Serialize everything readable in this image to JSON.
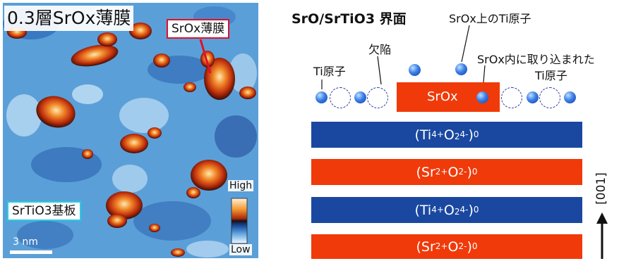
{
  "left_panel": {
    "title": "0.3層SrOx薄膜",
    "film_label": "SrOx薄膜",
    "substrate_label": "SrTiO3基板",
    "colorbar_high": "High",
    "colorbar_low": "Low",
    "scale_bar": "3 nm"
  },
  "right_panel": {
    "title": "SrO/SrTiO3 界面",
    "labels": {
      "ti_atom": "Ti原子",
      "vacancy": "欠陥",
      "ti_on_srox": "SrOx上のTi原子",
      "ti_in_srox": "SrOx内に取り込まれた",
      "ti_in_srox_2": "Ti原子",
      "srox_block": "SrOx"
    },
    "layers": [
      {
        "cation": "Ti",
        "cation_charge": "4+",
        "anion": "O",
        "anion_sub": "2",
        "anion_charge": "4-",
        "net": "0"
      },
      {
        "cation": "Sr",
        "cation_charge": "2+",
        "anion": "O",
        "anion_sub": "",
        "anion_charge": "2-",
        "net": "0"
      },
      {
        "cation": "Ti",
        "cation_charge": "4+",
        "anion": "O",
        "anion_sub": "2",
        "anion_charge": "4-",
        "net": "0"
      },
      {
        "cation": "Sr",
        "cation_charge": "2+",
        "anion": "O",
        "anion_sub": "",
        "anion_charge": "2-",
        "net": "0"
      }
    ],
    "direction_label": "[001]"
  },
  "colors": {
    "srtio3_layer": "#1a48a0",
    "sro_layer": "#f03a0a",
    "film_label_border": "#e0102a",
    "substrate_label_border": "#22d0e0"
  }
}
